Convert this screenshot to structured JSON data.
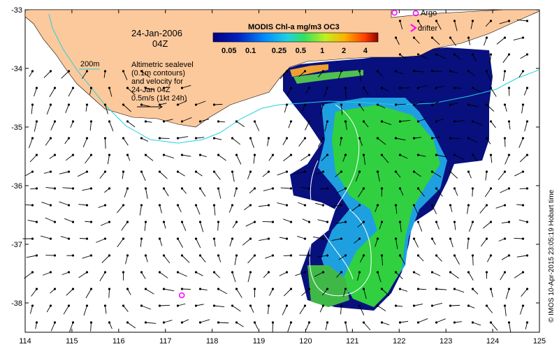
{
  "map": {
    "date_line": "24-Jan-2006",
    "time_line": "04Z",
    "colorbar_title": "MODIS Chl-a mg/m3 OC3",
    "colorbar_ticks": [
      "0.05",
      "0.1",
      "0.25",
      "0.5",
      "1",
      "2",
      "4"
    ],
    "colorbar_values": [
      0.05,
      0.1,
      0.25,
      0.5,
      1,
      2,
      4
    ],
    "colorbar_range": [
      0.03,
      6
    ],
    "depth_label": "200m",
    "annotation_lines": [
      "Altimetric sealevel",
      "(0.1m contours)",
      "and velocity for",
      "24-Jan 04Z",
      "0.5m/s (1kt 24h)"
    ],
    "legend": {
      "argo": "Argo",
      "drifter": "drifter"
    },
    "credit": "© IMOS 10-Apr-2015 23:05:19 Hobart time",
    "lon_ticks": [
      114,
      115,
      116,
      117,
      118,
      119,
      120,
      121,
      122,
      123,
      124,
      125
    ],
    "lat_ticks": [
      -33,
      -34,
      -35,
      -36,
      -37,
      -38
    ],
    "lon_range": [
      114,
      125
    ],
    "lat_range": [
      -38.5,
      -33
    ],
    "argo_floats": [
      {
        "lon": 117.35,
        "lat": -37.87
      },
      {
        "lon": 121.9,
        "lat": -33.05
      }
    ],
    "colors": {
      "land": "#fcc99c",
      "contour_200m": "#22d0e0",
      "argo": "#ff00ff",
      "low_chl": "#08107e",
      "mid_chl": "#1ea0e0",
      "high_chl": "#30d040"
    }
  }
}
